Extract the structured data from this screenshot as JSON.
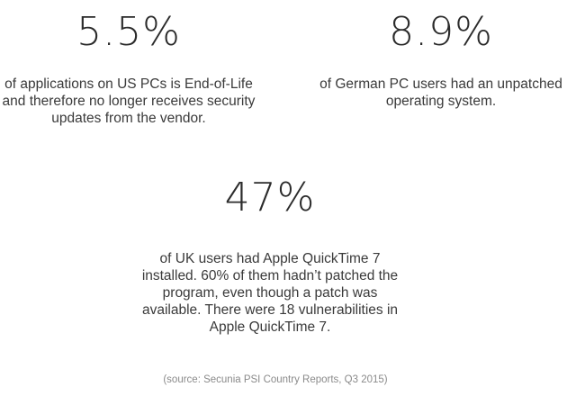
{
  "stats": {
    "eol": {
      "value": "5.5%",
      "description": "of applications on US PCs is End-of-Life\nand therefore no longer receives security\nupdates from the vendor."
    },
    "germany": {
      "value": "8.9%",
      "description": "of German PC users had an unpatched\noperating system."
    },
    "uk": {
      "value": "47%",
      "description": "of UK users had Apple QuickTime 7\ninstalled. 60% of them hadn’t patched the\nprogram, even though a patch was\navailable. There were 18 vulnerabilities in\nApple QuickTime 7."
    }
  },
  "source": "(source: Secunia PSI Country Reports, Q3 2015)"
}
